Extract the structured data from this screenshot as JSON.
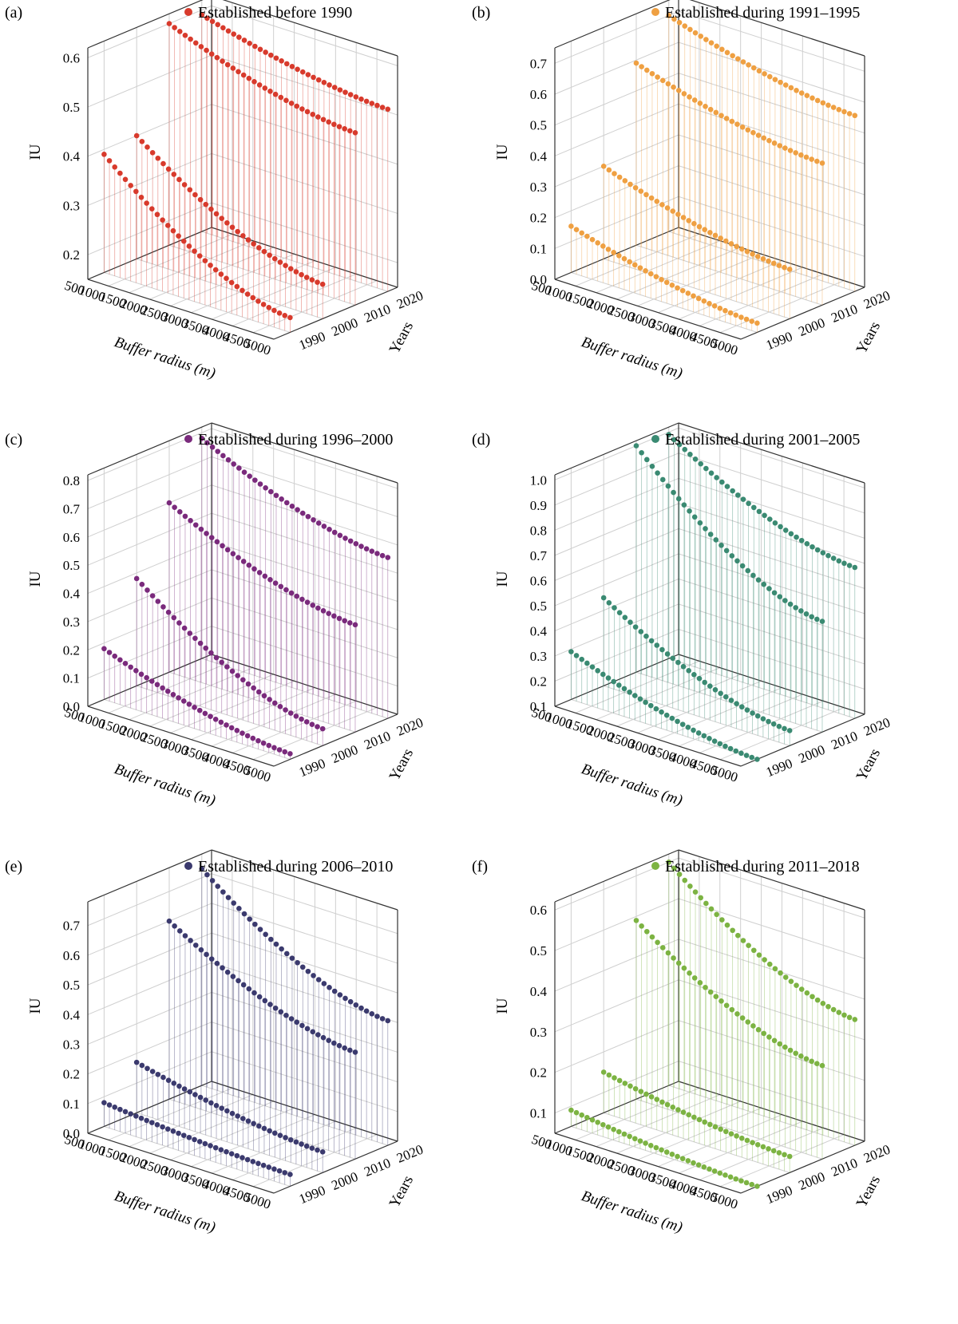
{
  "figure": {
    "axes": {
      "x_label": "Buffer radius (m)",
      "y_label": "Years",
      "z_label": "IU",
      "x_ticks": [
        "500",
        "1000",
        "1500",
        "2000",
        "2500",
        "3000",
        "3500",
        "4000",
        "4500",
        "5000"
      ],
      "y_ticks": [
        "1990",
        "2000",
        "2010",
        "2020"
      ]
    }
  },
  "chart_data": [
    {
      "panel": "(a)",
      "type": "scatter",
      "legend": "Established before 1990",
      "color": "#d83a2c",
      "x": [
        500,
        5000
      ],
      "years": [
        1990,
        2000,
        2010,
        2020
      ],
      "zlim": [
        0.15,
        0.62
      ],
      "zticks": [
        0.2,
        0.3,
        0.4,
        0.5,
        0.6
      ],
      "series": [
        {
          "year": 1990,
          "start": 0.39,
          "end": 0.18
        },
        {
          "year": 2000,
          "start": 0.4,
          "end": 0.22
        },
        {
          "year": 2010,
          "start": 0.6,
          "end": 0.5
        },
        {
          "year": 2020,
          "start": 0.59,
          "end": 0.52
        }
      ]
    },
    {
      "panel": "(b)",
      "type": "scatter",
      "legend": "Established during 1991–1995",
      "color": "#efa042",
      "x": [
        500,
        5000
      ],
      "years": [
        1990,
        2000,
        2010,
        2020
      ],
      "zlim": [
        0.0,
        0.75
      ],
      "zticks": [
        0.0,
        0.1,
        0.2,
        0.3,
        0.4,
        0.5,
        0.6,
        0.7
      ],
      "series": [
        {
          "year": 1990,
          "start": 0.15,
          "end": 0.03
        },
        {
          "year": 2000,
          "start": 0.3,
          "end": 0.16
        },
        {
          "year": 2010,
          "start": 0.59,
          "end": 0.46
        },
        {
          "year": 2020,
          "start": 0.7,
          "end": 0.57
        }
      ]
    },
    {
      "panel": "(c)",
      "type": "scatter",
      "legend": "Established during 1996–2000",
      "color": "#7a2a7c",
      "x": [
        500,
        5000
      ],
      "years": [
        1990,
        2000,
        2010,
        2020
      ],
      "zlim": [
        0.0,
        0.82
      ],
      "zticks": [
        0.0,
        0.1,
        0.2,
        0.3,
        0.4,
        0.5,
        0.6,
        0.7,
        0.8
      ],
      "series": [
        {
          "year": 1990,
          "start": 0.18,
          "end": 0.02
        },
        {
          "year": 2000,
          "start": 0.38,
          "end": 0.06
        },
        {
          "year": 2010,
          "start": 0.6,
          "end": 0.38
        },
        {
          "year": 2020,
          "start": 0.78,
          "end": 0.57
        }
      ]
    },
    {
      "panel": "(d)",
      "type": "scatter",
      "legend": "Established during 2001–2005",
      "color": "#3a8a72",
      "x": [
        500,
        5000
      ],
      "years": [
        1990,
        2000,
        2010,
        2020
      ],
      "zlim": [
        0.1,
        1.02
      ],
      "zticks": [
        0.1,
        0.2,
        0.3,
        0.4,
        0.5,
        0.6,
        0.7,
        0.8,
        0.9,
        1.0
      ],
      "series": [
        {
          "year": 1990,
          "start": 0.29,
          "end": 0.1
        },
        {
          "year": 2000,
          "start": 0.45,
          "end": 0.16
        },
        {
          "year": 2010,
          "start": 1.0,
          "end": 0.54
        },
        {
          "year": 2020,
          "start": 0.99,
          "end": 0.7
        }
      ]
    },
    {
      "panel": "(e)",
      "type": "scatter",
      "legend": "Established during 2006–2010",
      "color": "#3b3a6e",
      "x": [
        500,
        5000
      ],
      "years": [
        1990,
        2000,
        2010,
        2020
      ],
      "zlim": [
        0.0,
        0.78
      ],
      "zticks": [
        0.0,
        0.1,
        0.2,
        0.3,
        0.4,
        0.5,
        0.6,
        0.7
      ],
      "series": [
        {
          "year": 1990,
          "start": 0.08,
          "end": 0.04
        },
        {
          "year": 2000,
          "start": 0.17,
          "end": 0.07
        },
        {
          "year": 2010,
          "start": 0.6,
          "end": 0.36
        },
        {
          "year": 2020,
          "start": 0.73,
          "end": 0.42
        }
      ]
    },
    {
      "panel": "(f)",
      "type": "scatter",
      "legend": "Established during 2011–2018",
      "color": "#7cb342",
      "x": [
        500,
        5000
      ],
      "years": [
        1990,
        2000,
        2010,
        2020
      ],
      "zlim": [
        0.05,
        0.62
      ],
      "zticks": [
        0.1,
        0.2,
        0.3,
        0.4,
        0.5,
        0.6
      ],
      "series": [
        {
          "year": 1990,
          "start": 0.09,
          "end": 0.05
        },
        {
          "year": 2000,
          "start": 0.15,
          "end": 0.09
        },
        {
          "year": 2010,
          "start": 0.49,
          "end": 0.28
        },
        {
          "year": 2020,
          "start": 0.6,
          "end": 0.36
        }
      ]
    }
  ]
}
